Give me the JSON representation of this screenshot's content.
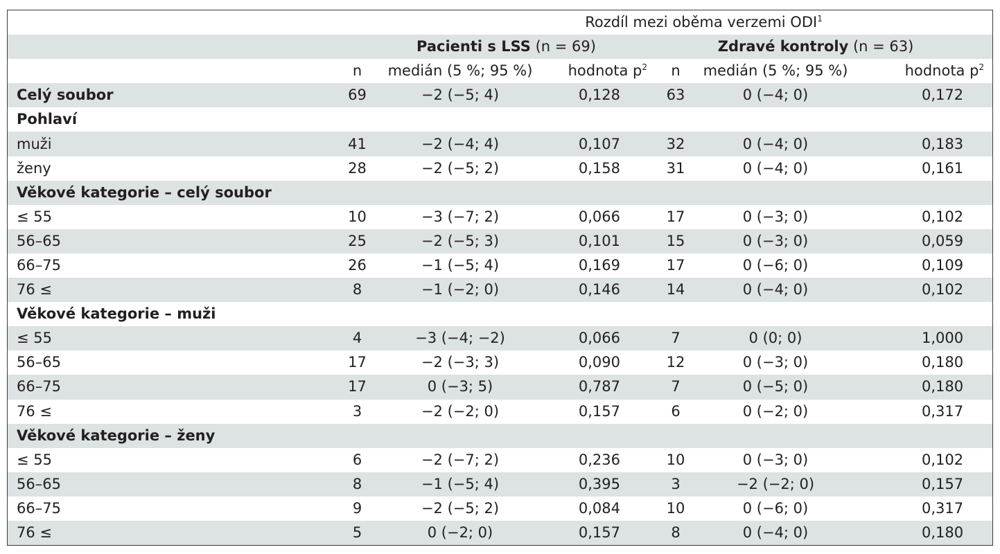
{
  "table": {
    "title": "Rozdíl mezi oběma verzemi ODI",
    "title_sup": "1",
    "groups": [
      {
        "name": "Pacienti s LSS",
        "count": "(n = 69)"
      },
      {
        "name": "Zdravé kontroly",
        "count": "(n = 63)"
      }
    ],
    "columns": {
      "n": "n",
      "median": "medián (5 %; 95 %)",
      "pvalue": "hodnota p",
      "pvalue_sup": "2"
    },
    "rows": [
      {
        "type": "data",
        "bold": true,
        "label": "Celý soubor",
        "n1": "69",
        "m1": "−2 (−5; 4)",
        "p1": "0,128",
        "n2": "63",
        "m2": "0 (−4; 0)",
        "p2": "0,172"
      },
      {
        "type": "section",
        "label": "Pohlaví"
      },
      {
        "type": "data",
        "label": "muži",
        "n1": "41",
        "m1": "−2 (−4; 4)",
        "p1": "0,107",
        "n2": "32",
        "m2": "0 (−4; 0)",
        "p2": "0,183"
      },
      {
        "type": "data",
        "label": "ženy",
        "n1": "28",
        "m1": "−2 (−5; 2)",
        "p1": "0,158",
        "n2": "31",
        "m2": "0 (−4; 0)",
        "p2": "0,161"
      },
      {
        "type": "section",
        "label": "Věkové kategorie – celý soubor"
      },
      {
        "type": "data",
        "label": "≤ 55",
        "n1": "10",
        "m1": "−3 (−7; 2)",
        "p1": "0,066",
        "n2": "17",
        "m2": "0 (−3; 0)",
        "p2": "0,102"
      },
      {
        "type": "data",
        "label": "56–65",
        "n1": "25",
        "m1": "−2 (−5; 3)",
        "p1": "0,101",
        "n2": "15",
        "m2": "0 (−3; 0)",
        "p2": "0,059"
      },
      {
        "type": "data",
        "label": "66–75",
        "n1": "26",
        "m1": "−1 (−5; 4)",
        "p1": "0,169",
        "n2": "17",
        "m2": "0 (−6; 0)",
        "p2": "0,109"
      },
      {
        "type": "data",
        "label": "76 ≤",
        "n1": "8",
        "m1": "−1 (−2; 0)",
        "p1": "0,146",
        "n2": "14",
        "m2": "0 (−4; 0)",
        "p2": "0,102"
      },
      {
        "type": "section",
        "label": "Věkové kategorie – muži"
      },
      {
        "type": "data",
        "label": "≤ 55",
        "n1": "4",
        "m1": "−3 (−4; −2)",
        "p1": "0,066",
        "n2": "7",
        "m2": "0 (0; 0)",
        "p2": "1,000"
      },
      {
        "type": "data",
        "label": "56–65",
        "n1": "17",
        "m1": "−2 (−3; 3)",
        "p1": "0,090",
        "n2": "12",
        "m2": "0 (−3; 0)",
        "p2": "0,180"
      },
      {
        "type": "data",
        "label": "66–75",
        "n1": "17",
        "m1": "0 (−3; 5)",
        "p1": "0,787",
        "n2": "7",
        "m2": "0 (−5; 0)",
        "p2": "0,180"
      },
      {
        "type": "data",
        "label": "76 ≤",
        "n1": "3",
        "m1": "−2 (−2; 0)",
        "p1": "0,157",
        "n2": "6",
        "m2": "0 (−2; 0)",
        "p2": "0,317"
      },
      {
        "type": "section",
        "label": "Věkové kategorie – ženy"
      },
      {
        "type": "data",
        "label": "≤ 55",
        "n1": "6",
        "m1": "−2 (−7; 2)",
        "p1": "0,236",
        "n2": "10",
        "m2": "0 (−3; 0)",
        "p2": "0,102"
      },
      {
        "type": "data",
        "label": "56–65",
        "n1": "8",
        "m1": "−1 (−5; 4)",
        "p1": "0,395",
        "n2": "3",
        "m2": "−2 (−2; 0)",
        "p2": "0,157"
      },
      {
        "type": "data",
        "label": "66–75",
        "n1": "9",
        "m1": "−2 (−5; 2)",
        "p1": "0,084",
        "n2": "10",
        "m2": "0 (−6; 0)",
        "p2": "0,317"
      },
      {
        "type": "data",
        "label": "76 ≤",
        "n1": "5",
        "m1": "0 (−2; 0)",
        "p1": "0,157",
        "n2": "8",
        "m2": "0 (−4; 0)",
        "p2": "0,180"
      }
    ]
  },
  "colors": {
    "shade": "#dde2e3",
    "border": "#3a3a3a",
    "text": "#231f20"
  }
}
